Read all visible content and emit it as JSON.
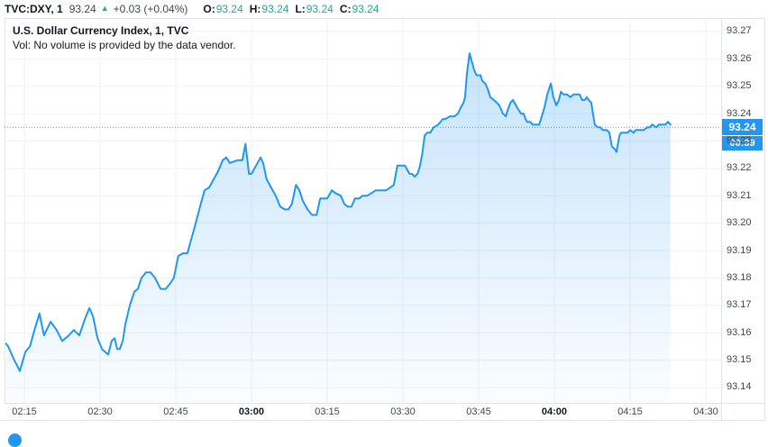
{
  "header": {
    "symbol": "TVC:DXY, 1",
    "last": "93.24",
    "arrow_up": "▲",
    "change": "+0.03 (+0.04%)",
    "ohlc": [
      {
        "label": "O:",
        "value": "93.24"
      },
      {
        "label": "H:",
        "value": "93.24"
      },
      {
        "label": "L:",
        "value": "93.24"
      },
      {
        "label": "C:",
        "value": "93.24"
      }
    ]
  },
  "legend": {
    "title": "U.S. Dollar Currency Index, 1, TVC",
    "subtitle": "Vol: No volume is provided by the data vendor."
  },
  "price_axis": {
    "last_badge": "93.24",
    "countdown": "00:39",
    "ticks": [
      {
        "label": "93.27",
        "value": 93.27
      },
      {
        "label": "93.26",
        "value": 93.26
      },
      {
        "label": "93.25",
        "value": 93.25
      },
      {
        "label": "93.24",
        "value": 93.24
      },
      {
        "label": "93.23",
        "value": 93.23
      },
      {
        "label": "93.22",
        "value": 93.22
      },
      {
        "label": "93.21",
        "value": 93.21
      },
      {
        "label": "93.20",
        "value": 93.2
      },
      {
        "label": "93.19",
        "value": 93.19
      },
      {
        "label": "93.18",
        "value": 93.18
      },
      {
        "label": "93.17",
        "value": 93.17
      },
      {
        "label": "93.16",
        "value": 93.16
      },
      {
        "label": "93.15",
        "value": 93.15
      },
      {
        "label": "93.14",
        "value": 93.14
      }
    ]
  },
  "time_axis": {
    "ticks": [
      {
        "label": "02:15",
        "t": 15,
        "bold": false
      },
      {
        "label": "02:30",
        "t": 30,
        "bold": false
      },
      {
        "label": "02:45",
        "t": 45,
        "bold": false
      },
      {
        "label": "03:00",
        "t": 60,
        "bold": true
      },
      {
        "label": "03:15",
        "t": 75,
        "bold": false
      },
      {
        "label": "03:30",
        "t": 90,
        "bold": false
      },
      {
        "label": "03:45",
        "t": 105,
        "bold": false
      },
      {
        "label": "04:00",
        "t": 120,
        "bold": true
      },
      {
        "label": "04:15",
        "t": 135,
        "bold": false
      },
      {
        "label": "04:30",
        "t": 150,
        "bold": false
      }
    ]
  },
  "colors": {
    "accent": "#2196f3",
    "teal": "#26a69a",
    "text": "#131722",
    "secondary_text": "#42464e",
    "axis_text": "#42464d",
    "grid": "#edf0f7",
    "border": "#e0e3eb",
    "badge_text": "#ffffff",
    "fill_top": "rgba(33,150,243,0.26)",
    "fill_bottom": "rgba(33,150,243,0.02)"
  },
  "chart_data": {
    "type": "area",
    "title": "U.S. Dollar Currency Index, 1, TVC",
    "series_name": "TVC:DXY",
    "x_unit": "minutes after 02:00",
    "xlim": [
      11.07,
      153.04
    ],
    "ylim": [
      93.1344,
      93.2749
    ],
    "close": 93.235,
    "grid": true,
    "points": [
      [
        11.4,
        93.156
      ],
      [
        11.8,
        93.155
      ],
      [
        13,
        93.15
      ],
      [
        14.1,
        93.146
      ],
      [
        15.2,
        93.153
      ],
      [
        16.1,
        93.155
      ],
      [
        17,
        93.161
      ],
      [
        18,
        93.167
      ],
      [
        18.9,
        93.159
      ],
      [
        20.2,
        93.164
      ],
      [
        21.4,
        93.161
      ],
      [
        22.5,
        93.157
      ],
      [
        23.8,
        93.159
      ],
      [
        24.8,
        93.161
      ],
      [
        25.9,
        93.159
      ],
      [
        27,
        93.165
      ],
      [
        27.9,
        93.169
      ],
      [
        28.6,
        93.166
      ],
      [
        29.5,
        93.158
      ],
      [
        30.4,
        93.154
      ],
      [
        31.6,
        93.152
      ],
      [
        32.3,
        93.157
      ],
      [
        32.9,
        93.158
      ],
      [
        33.4,
        93.154
      ],
      [
        33.9,
        93.154
      ],
      [
        34.5,
        93.157
      ],
      [
        35,
        93.163
      ],
      [
        35.9,
        93.17
      ],
      [
        36.8,
        93.175
      ],
      [
        37.5,
        93.176
      ],
      [
        38.2,
        93.18
      ],
      [
        39.1,
        93.182
      ],
      [
        40,
        93.182
      ],
      [
        40.9,
        93.18
      ],
      [
        42,
        93.176
      ],
      [
        43,
        93.176
      ],
      [
        43.9,
        93.178
      ],
      [
        44.6,
        93.18
      ],
      [
        45.5,
        93.188
      ],
      [
        46.4,
        93.189
      ],
      [
        47.3,
        93.189
      ],
      [
        47.9,
        93.193
      ],
      [
        48.8,
        93.199
      ],
      [
        49.8,
        93.206
      ],
      [
        50.7,
        93.212
      ],
      [
        51.6,
        93.213
      ],
      [
        52.5,
        93.216
      ],
      [
        53.4,
        93.219
      ],
      [
        54.3,
        93.223
      ],
      [
        55,
        93.224
      ],
      [
        55.7,
        93.222
      ],
      [
        57.3,
        93.223
      ],
      [
        58.2,
        93.223
      ],
      [
        58.8,
        93.229
      ],
      [
        59.5,
        93.218
      ],
      [
        60,
        93.218
      ],
      [
        60.9,
        93.221
      ],
      [
        61.8,
        93.224
      ],
      [
        62.3,
        93.222
      ],
      [
        63,
        93.216
      ],
      [
        63.9,
        93.213
      ],
      [
        64.8,
        93.21
      ],
      [
        65.7,
        93.206
      ],
      [
        66.6,
        93.205
      ],
      [
        67.3,
        93.205
      ],
      [
        68,
        93.207
      ],
      [
        68.8,
        93.214
      ],
      [
        69.5,
        93.212
      ],
      [
        70.2,
        93.208
      ],
      [
        71.1,
        93.205
      ],
      [
        72,
        93.203
      ],
      [
        72.9,
        93.203
      ],
      [
        73.6,
        93.209
      ],
      [
        74.3,
        93.209
      ],
      [
        75,
        93.209
      ],
      [
        75.9,
        93.212
      ],
      [
        76.6,
        93.211
      ],
      [
        77.7,
        93.21
      ],
      [
        78.4,
        93.207
      ],
      [
        79.1,
        93.206
      ],
      [
        79.8,
        93.206
      ],
      [
        80.5,
        93.209
      ],
      [
        81.3,
        93.209
      ],
      [
        82,
        93.21
      ],
      [
        82.9,
        93.21
      ],
      [
        83.8,
        93.211
      ],
      [
        84.6,
        93.212
      ],
      [
        85.5,
        93.212
      ],
      [
        86.6,
        93.212
      ],
      [
        87.5,
        93.213
      ],
      [
        88.2,
        93.214
      ],
      [
        88.9,
        93.221
      ],
      [
        89.6,
        93.221
      ],
      [
        90.4,
        93.221
      ],
      [
        90.7,
        93.22
      ],
      [
        91.3,
        93.218
      ],
      [
        91.8,
        93.218
      ],
      [
        92.3,
        93.217
      ],
      [
        92.9,
        93.218
      ],
      [
        93.4,
        93.221
      ],
      [
        93.8,
        93.225
      ],
      [
        94.3,
        93.232
      ],
      [
        94.8,
        93.233
      ],
      [
        95.4,
        93.233
      ],
      [
        96.1,
        93.235
      ],
      [
        97,
        93.236
      ],
      [
        97.9,
        93.238
      ],
      [
        98.4,
        93.238
      ],
      [
        99.3,
        93.239
      ],
      [
        100.2,
        93.239
      ],
      [
        100.9,
        93.24
      ],
      [
        101.4,
        93.242
      ],
      [
        102,
        93.244
      ],
      [
        102.3,
        93.246
      ],
      [
        102.7,
        93.255
      ],
      [
        103.2,
        93.262
      ],
      [
        103.8,
        93.258
      ],
      [
        104.1,
        93.256
      ],
      [
        104.6,
        93.254
      ],
      [
        105.4,
        93.254
      ],
      [
        105.7,
        93.252
      ],
      [
        106.3,
        93.251
      ],
      [
        106.8,
        93.249
      ],
      [
        107.3,
        93.246
      ],
      [
        108,
        93.245
      ],
      [
        108.6,
        93.244
      ],
      [
        109.1,
        93.243
      ],
      [
        109.8,
        93.24
      ],
      [
        110.4,
        93.239
      ],
      [
        110.7,
        93.241
      ],
      [
        111.3,
        93.244
      ],
      [
        111.8,
        93.245
      ],
      [
        112.1,
        93.244
      ],
      [
        112.7,
        93.242
      ],
      [
        113.4,
        93.24
      ],
      [
        113.9,
        93.24
      ],
      [
        114.3,
        93.238
      ],
      [
        114.6,
        93.237
      ],
      [
        115.2,
        93.237
      ],
      [
        115.7,
        93.236
      ],
      [
        116.3,
        93.236
      ],
      [
        117,
        93.236
      ],
      [
        117.5,
        93.239
      ],
      [
        118,
        93.242
      ],
      [
        118.6,
        93.247
      ],
      [
        119.3,
        93.251
      ],
      [
        119.8,
        93.246
      ],
      [
        120.4,
        93.243
      ],
      [
        120.9,
        93.245
      ],
      [
        121.3,
        93.248
      ],
      [
        121.8,
        93.247
      ],
      [
        122.5,
        93.247
      ],
      [
        123.2,
        93.246
      ],
      [
        123.8,
        93.247
      ],
      [
        124.3,
        93.247
      ],
      [
        125,
        93.247
      ],
      [
        125.5,
        93.245
      ],
      [
        126.1,
        93.245
      ],
      [
        126.4,
        93.246
      ],
      [
        126.8,
        93.245
      ],
      [
        127.3,
        93.244
      ],
      [
        128,
        93.236
      ],
      [
        128.6,
        93.235
      ],
      [
        129.1,
        93.235
      ],
      [
        129.6,
        93.234
      ],
      [
        130.4,
        93.234
      ],
      [
        130.9,
        93.233
      ],
      [
        131.4,
        93.228
      ],
      [
        132,
        93.227
      ],
      [
        132.3,
        93.226
      ],
      [
        132.9,
        93.232
      ],
      [
        133.2,
        93.233
      ],
      [
        133.6,
        93.233
      ],
      [
        134.1,
        93.233
      ],
      [
        134.5,
        93.233
      ],
      [
        135,
        93.234
      ],
      [
        135.7,
        93.233
      ],
      [
        136.1,
        93.234
      ],
      [
        136.6,
        93.234
      ],
      [
        137.1,
        93.234
      ],
      [
        137.7,
        93.234
      ],
      [
        138.4,
        93.235
      ],
      [
        138.9,
        93.235
      ],
      [
        139.4,
        93.236
      ],
      [
        140.2,
        93.235
      ],
      [
        140.7,
        93.236
      ],
      [
        141.3,
        93.236
      ],
      [
        142,
        93.236
      ],
      [
        142.5,
        93.237
      ],
      [
        143,
        93.236
      ]
    ]
  }
}
